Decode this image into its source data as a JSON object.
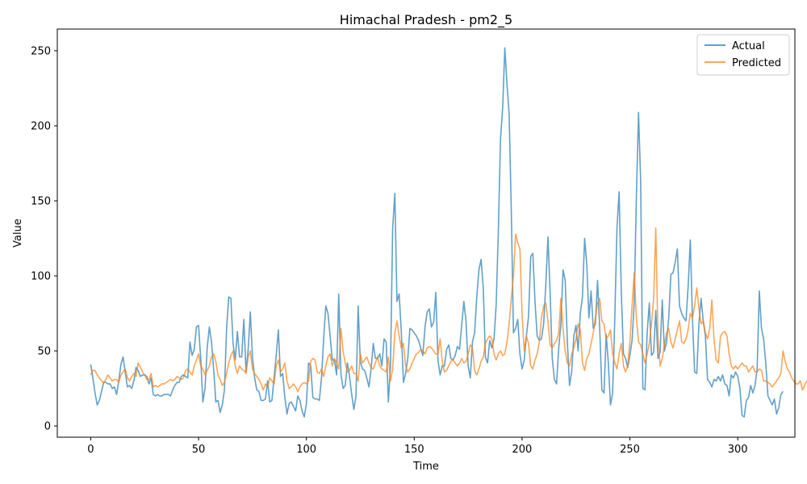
{
  "chart_data": {
    "type": "line",
    "title": "Himachal Pradesh - pm2_5",
    "xlabel": "Time",
    "ylabel": "Value",
    "xlim": [
      -15.5,
      326.5
    ],
    "ylim": [
      -7.5,
      264.5
    ],
    "xticks": [
      0,
      50,
      100,
      150,
      200,
      250,
      300
    ],
    "yticks": [
      0,
      50,
      100,
      150,
      200,
      250
    ],
    "legend": "top-right",
    "grid": false,
    "series": [
      {
        "name": "Actual",
        "color": "#1f77b4",
        "opacity": 0.7,
        "values": [
          41,
          32,
          22,
          14,
          17,
          23,
          29,
          29,
          28,
          28,
          25,
          26,
          21,
          30,
          41,
          46,
          36,
          26,
          27,
          25,
          30,
          39,
          37,
          33,
          34,
          34,
          33,
          28,
          32,
          21,
          20,
          21,
          20,
          20,
          21,
          21,
          21,
          20,
          24,
          27,
          29,
          29,
          33,
          34,
          33,
          32,
          56,
          47,
          51,
          66,
          67,
          45,
          16,
          25,
          52,
          66,
          56,
          38,
          16,
          17,
          9,
          14,
          24,
          65,
          86,
          85,
          55,
          44,
          63,
          46,
          46,
          71,
          36,
          51,
          76,
          46,
          32,
          24,
          23,
          17,
          17,
          18,
          30,
          16,
          17,
          32,
          47,
          64,
          33,
          35,
          19,
          8,
          15,
          16,
          13,
          10,
          20,
          17,
          10,
          6,
          15,
          42,
          40,
          19,
          18,
          18,
          17,
          32,
          58,
          80,
          75,
          60,
          44,
          44,
          34,
          88,
          35,
          25,
          27,
          42,
          33,
          21,
          11,
          20,
          80,
          43,
          38,
          37,
          32,
          26,
          38,
          55,
          45,
          45,
          48,
          40,
          58,
          56,
          16,
          40,
          132,
          155,
          83,
          88,
          63,
          29,
          35,
          45,
          65,
          64,
          62,
          60,
          57,
          52,
          47,
          66,
          76,
          78,
          66,
          69,
          89,
          44,
          34,
          40,
          40,
          51,
          54,
          45,
          44,
          47,
          53,
          51,
          67,
          83,
          70,
          40,
          32,
          56,
          62,
          86,
          104,
          111,
          92,
          46,
          42,
          57,
          52,
          58,
          81,
          130,
          191,
          212,
          252,
          228,
          208,
          144,
          62,
          65,
          71,
          48,
          38,
          44,
          60,
          73,
          113,
          115,
          83,
          60,
          57,
          58,
          68,
          94,
          126,
          89,
          45,
          31,
          28,
          52,
          68,
          104,
          97,
          56,
          27,
          36,
          60,
          67,
          50,
          75,
          86,
          125,
          108,
          72,
          90,
          65,
          68,
          97,
          65,
          24,
          22,
          61,
          42,
          14,
          22,
          72,
          132,
          156,
          90,
          48,
          45,
          39,
          47,
          57,
          82,
          153,
          209,
          162,
          25,
          24,
          62,
          82,
          47,
          49,
          77,
          45,
          49,
          84,
          50,
          56,
          72,
          101,
          102,
          109,
          118,
          80,
          75,
          72,
          70,
          93,
          124,
          72,
          36,
          35,
          68,
          85,
          70,
          60,
          31,
          29,
          26,
          31,
          30,
          33,
          30,
          34,
          28,
          27,
          20,
          34,
          32,
          36,
          33,
          25,
          7,
          6,
          17,
          19,
          27,
          22,
          27,
          38,
          90,
          65,
          58,
          42,
          20,
          17,
          14,
          18,
          8,
          12,
          21,
          23
        ]
      },
      {
        "name": "Predicted",
        "color": "#ff7f0e",
        "opacity": 0.7,
        "values": [
          34,
          37,
          37,
          34,
          32,
          30,
          29,
          31,
          34,
          32,
          30,
          31,
          31,
          29,
          34,
          36,
          38,
          32,
          30,
          33,
          35,
          33,
          42,
          39,
          36,
          34,
          31,
          31,
          35,
          26,
          27,
          26,
          27,
          28,
          28,
          29,
          30,
          31,
          30,
          31,
          33,
          32,
          31,
          32,
          37,
          38,
          36,
          34,
          40,
          44,
          48,
          40,
          38,
          34,
          37,
          40,
          46,
          48,
          43,
          34,
          31,
          27,
          29,
          35,
          42,
          47,
          50,
          40,
          35,
          40,
          38,
          37,
          35,
          46,
          50,
          38,
          35,
          33,
          31,
          28,
          24,
          28,
          26,
          32,
          30,
          28,
          40,
          44,
          36,
          38,
          42,
          30,
          25,
          26,
          28,
          26,
          23,
          26,
          28,
          29,
          28,
          30,
          43,
          45,
          44,
          36,
          35,
          38,
          33,
          40,
          46,
          48,
          40,
          45,
          42,
          38,
          65,
          50,
          42,
          36,
          37,
          40,
          35,
          35,
          30,
          48,
          42,
          44,
          46,
          42,
          39,
          38,
          42,
          46,
          40,
          38,
          37,
          36,
          46,
          30,
          38,
          62,
          70,
          60,
          52,
          55,
          40,
          36,
          38,
          42,
          45,
          48,
          49,
          51,
          50,
          48,
          52,
          53,
          52,
          50,
          48,
          48,
          58,
          43,
          36,
          37,
          40,
          43,
          44,
          42,
          40,
          42,
          45,
          42,
          43,
          48,
          54,
          52,
          37,
          34,
          38,
          43,
          46,
          55,
          58,
          60,
          58,
          48,
          44,
          48,
          50,
          47,
          48,
          56,
          68,
          85,
          100,
          128,
          122,
          118,
          75,
          50,
          60,
          55,
          40,
          38,
          44,
          48,
          56,
          72,
          80,
          82,
          70,
          54,
          52,
          55,
          57,
          62,
          85,
          65,
          50,
          42,
          40,
          48,
          52,
          58,
          68,
          64,
          42,
          37,
          45,
          48,
          55,
          62,
          72,
          82,
          85,
          70,
          68,
          58,
          60,
          64,
          48,
          42,
          38,
          48,
          55,
          40,
          36,
          40,
          56,
          80,
          102,
          72,
          56,
          54,
          48,
          42,
          48,
          55,
          68,
          85,
          132,
          60,
          40,
          45,
          54,
          62,
          65,
          56,
          52,
          58,
          64,
          70,
          56,
          55,
          58,
          64,
          75,
          72,
          80,
          92,
          78,
          68,
          70,
          62,
          58,
          65,
          84,
          58,
          44,
          42,
          60,
          62,
          63,
          60,
          48,
          40,
          38,
          40,
          38,
          40,
          42,
          40,
          40,
          36,
          38,
          40,
          36,
          36,
          38,
          37,
          30,
          30,
          29,
          28,
          26,
          28,
          30,
          32,
          35,
          50,
          43,
          38,
          36,
          32,
          30,
          28,
          28,
          30,
          24,
          27,
          30
        ]
      }
    ]
  }
}
